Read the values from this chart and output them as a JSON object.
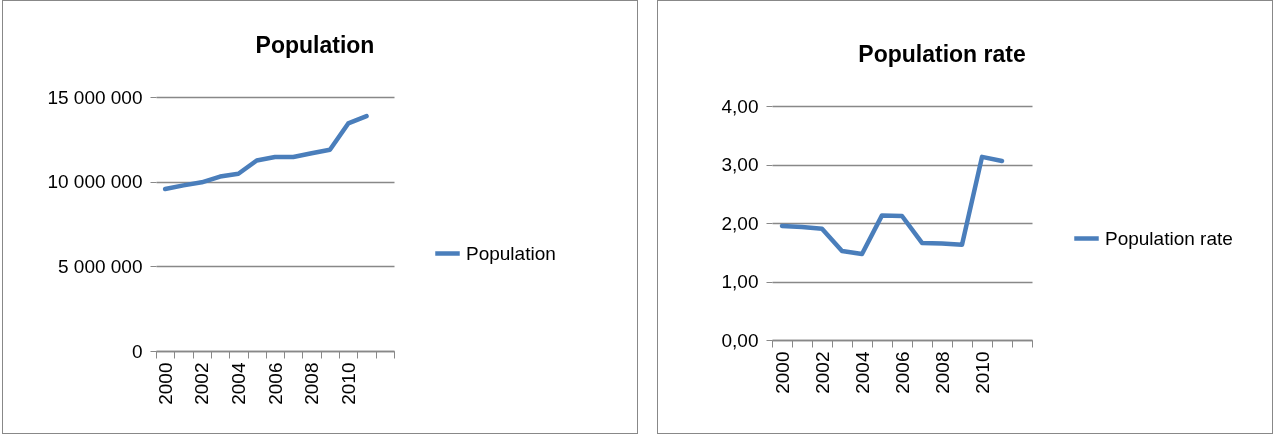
{
  "chart_data": [
    {
      "type": "line",
      "title": "Population",
      "categories": [
        "2000",
        null,
        "2002",
        null,
        "2004",
        null,
        "2006",
        null,
        "2008",
        null,
        "2010",
        null,
        null
      ],
      "series": [
        {
          "name": "Population",
          "color": "#4a7ebb",
          "values": [
            9570000,
            9780000,
            9960000,
            10300000,
            10470000,
            11250000,
            11460000,
            11460000,
            11680000,
            11880000,
            13440000,
            13870000,
            null
          ]
        }
      ],
      "ylim": [
        0,
        15000000
      ],
      "yticks": [
        {
          "value": 0,
          "label": "0"
        },
        {
          "value": 5000000,
          "label": "5 000 000"
        },
        {
          "value": 10000000,
          "label": "10 000 000"
        },
        {
          "value": 15000000,
          "label": "15 000 000"
        }
      ],
      "grid": "y",
      "legend": "right"
    },
    {
      "type": "line",
      "title": "Population rate",
      "categories": [
        "2000",
        null,
        "2002",
        null,
        "2004",
        null,
        "2006",
        null,
        "2008",
        null,
        "2010",
        null,
        null
      ],
      "series": [
        {
          "name": "Population rate",
          "color": "#4a7ebb",
          "values": [
            1.95,
            1.93,
            1.9,
            1.52,
            1.47,
            2.13,
            2.12,
            1.66,
            1.65,
            1.63,
            3.13,
            3.06,
            null
          ]
        }
      ],
      "ylim": [
        0,
        4
      ],
      "yticks": [
        {
          "value": 0,
          "label": "0,00"
        },
        {
          "value": 1,
          "label": "1,00"
        },
        {
          "value": 2,
          "label": "2,00"
        },
        {
          "value": 3,
          "label": "3,00"
        },
        {
          "value": 4,
          "label": "4,00"
        }
      ],
      "grid": "y",
      "legend": "right"
    }
  ]
}
